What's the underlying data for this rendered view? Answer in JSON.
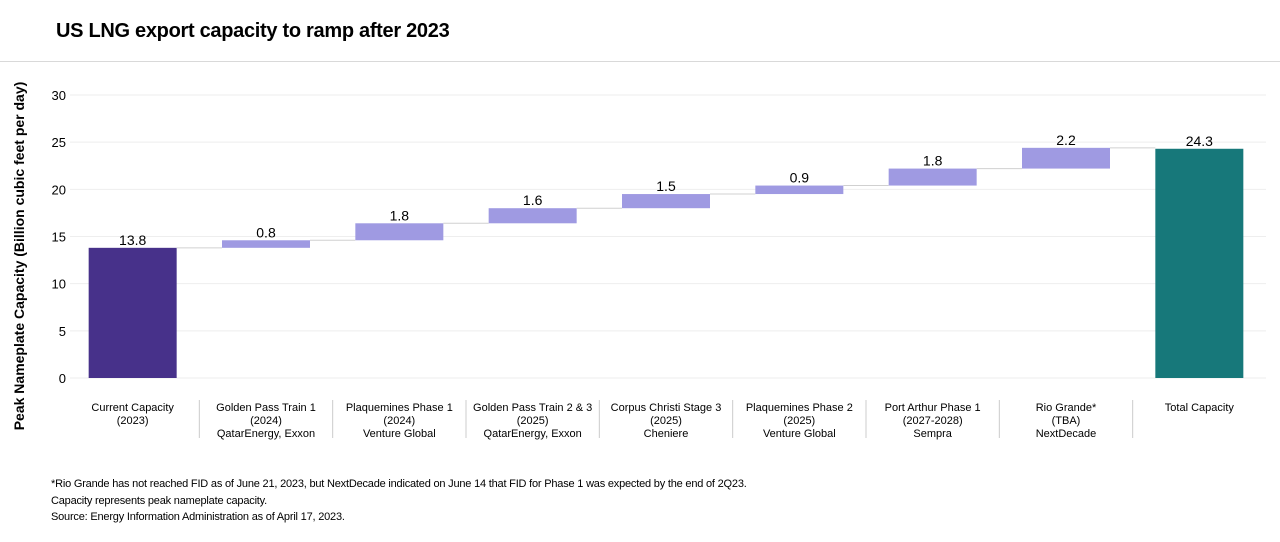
{
  "title": "US LNG export capacity to ramp after 2023",
  "chart_data": {
    "type": "waterfall",
    "title": "US LNG export capacity to ramp after 2023",
    "ylabel": "Peak Nameplate Capacity (Billion cubic feet per day)",
    "ylim": [
      0,
      30
    ],
    "yticks": [
      0,
      5,
      10,
      15,
      20,
      25,
      30
    ],
    "grid": true,
    "categories": [
      [
        "Current Capacity",
        "(2023)",
        ""
      ],
      [
        "Golden Pass Train 1",
        "(2024)",
        "QatarEnergy, Exxon"
      ],
      [
        "Plaquemines Phase 1",
        "(2024)",
        "Venture Global"
      ],
      [
        "Golden Pass Train 2 & 3",
        "(2025)",
        "QatarEnergy, Exxon"
      ],
      [
        "Corpus Christi Stage 3",
        "(2025)",
        "Cheniere"
      ],
      [
        "Plaquemines Phase 2",
        "(2025)",
        "Venture Global"
      ],
      [
        "Port Arthur Phase 1",
        "(2027-2028)",
        "Sempra"
      ],
      [
        "Rio Grande*",
        "(TBA)",
        "NextDecade"
      ],
      [
        "Total Capacity",
        "",
        ""
      ]
    ],
    "values": [
      13.8,
      0.8,
      1.8,
      1.6,
      1.5,
      0.9,
      1.8,
      2.2,
      24.3
    ],
    "labels": [
      "13.8",
      "0.8",
      "1.8",
      "1.6",
      "1.5",
      "0.9",
      "1.8",
      "2.2",
      "24.3"
    ],
    "bar_kinds": [
      "base",
      "increment",
      "increment",
      "increment",
      "increment",
      "increment",
      "increment",
      "increment",
      "total"
    ],
    "colors": {
      "base": "#47318a",
      "increment": "#9f9ae2",
      "total": "#17787a",
      "grid": "#eeeeee",
      "connector": "#d0d0d0",
      "separator": "#cccccc"
    }
  },
  "footnotes": [
    "*Rio Grande has not reached FID as of June 21, 2023, but NextDecade indicated on June 14 that FID for Phase 1 was expected by the end of 2Q23.",
    "Capacity represents peak nameplate capacity.",
    "Source: Energy Information Administration as of April 17, 2023."
  ]
}
